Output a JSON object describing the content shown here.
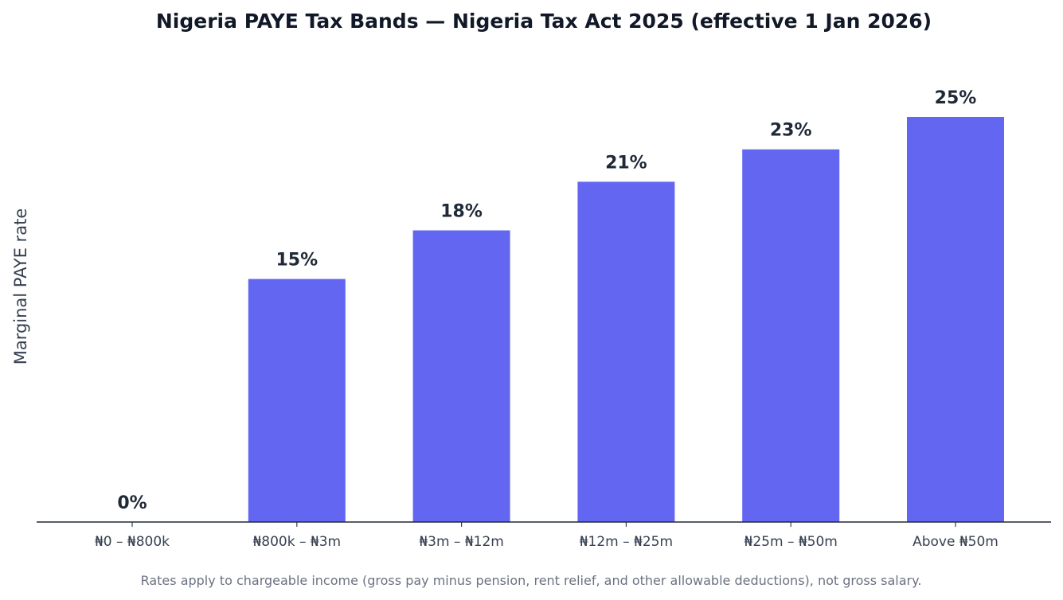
{
  "chart_data": {
    "type": "bar",
    "title": "Nigeria PAYE Tax Bands — Nigeria Tax Act 2025 (effective 1 Jan 2026)",
    "xlabel": "",
    "ylabel": "Marginal PAYE rate",
    "categories": [
      "₦0 – ₦800k",
      "₦800k – ₦3m",
      "₦3m – ₦12m",
      "₦12m – ₦25m",
      "₦25m – ₦50m",
      "Above ₦50m"
    ],
    "values": [
      0,
      15,
      18,
      21,
      23,
      25
    ],
    "value_labels": [
      "0%",
      "15%",
      "18%",
      "21%",
      "23%",
      "25%"
    ],
    "ylim": [
      0,
      28
    ],
    "grid": false,
    "y_axis_visible": false,
    "bar_color": "#6366f1",
    "footnote": "Rates apply to chargeable income (gross pay minus pension, rent relief, and other allowable deductions), not gross salary."
  }
}
